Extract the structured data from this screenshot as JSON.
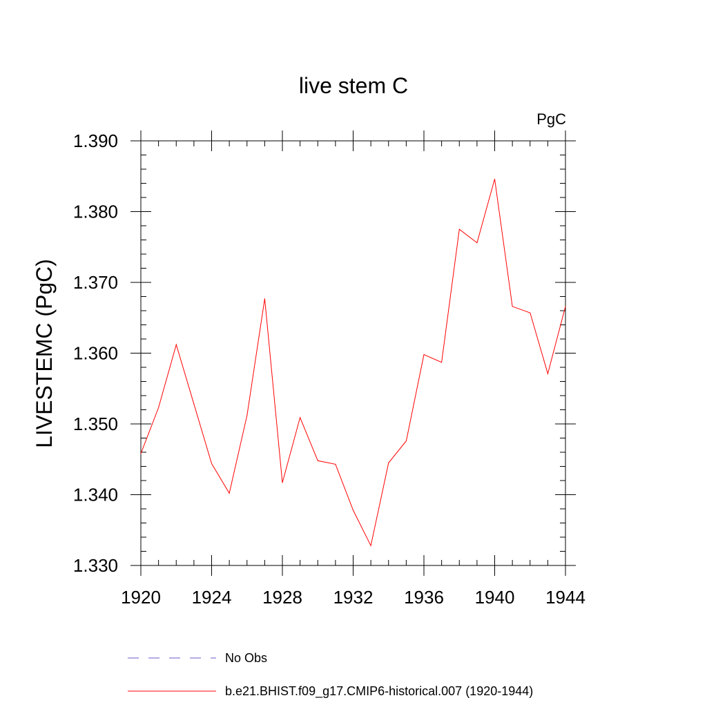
{
  "chart_data": {
    "type": "line",
    "title": "live stem C",
    "units_label": "PgC",
    "ylabel": "LIVESTEMC  (PgC)",
    "xlabel": "",
    "xlim": [
      1920,
      1944
    ],
    "ylim": [
      1.33,
      1.39
    ],
    "x_ticks": [
      1920,
      1924,
      1928,
      1932,
      1936,
      1940,
      1944
    ],
    "x_tick_labels": [
      "1920",
      "1924",
      "1928",
      "1932",
      "1936",
      "1940",
      "1944"
    ],
    "y_ticks": [
      1.33,
      1.34,
      1.35,
      1.36,
      1.37,
      1.38,
      1.39
    ],
    "y_tick_labels": [
      "1.330",
      "1.340",
      "1.350",
      "1.360",
      "1.370",
      "1.380",
      "1.390"
    ],
    "grid": false,
    "legend_position": "bottom",
    "series": [
      {
        "name": "b.e21.BHIST.f09_g17.CMIP6-historical.007 (1920-1944)",
        "color": "#ff0000",
        "x": [
          1920,
          1921,
          1922,
          1923,
          1924,
          1925,
          1926,
          1927,
          1928,
          1929,
          1930,
          1931,
          1932,
          1933,
          1934,
          1935,
          1936,
          1937,
          1938,
          1939,
          1940,
          1941,
          1942,
          1943,
          1944
        ],
        "y": [
          1.3458,
          1.3523,
          1.3612,
          1.3528,
          1.3444,
          1.3402,
          1.3512,
          1.3677,
          1.3417,
          1.3509,
          1.3448,
          1.3443,
          1.3378,
          1.3328,
          1.3445,
          1.3476,
          1.3598,
          1.3587,
          1.3775,
          1.3756,
          1.3846,
          1.3666,
          1.3657,
          1.3571,
          1.3666
        ]
      }
    ],
    "legend": [
      {
        "label": "No Obs",
        "style": "dashed",
        "color": "#6a5acd"
      },
      {
        "label": "b.e21.BHIST.f09_g17.CMIP6-historical.007 (1920-1944)",
        "style": "solid",
        "color": "#ff0000"
      }
    ]
  }
}
